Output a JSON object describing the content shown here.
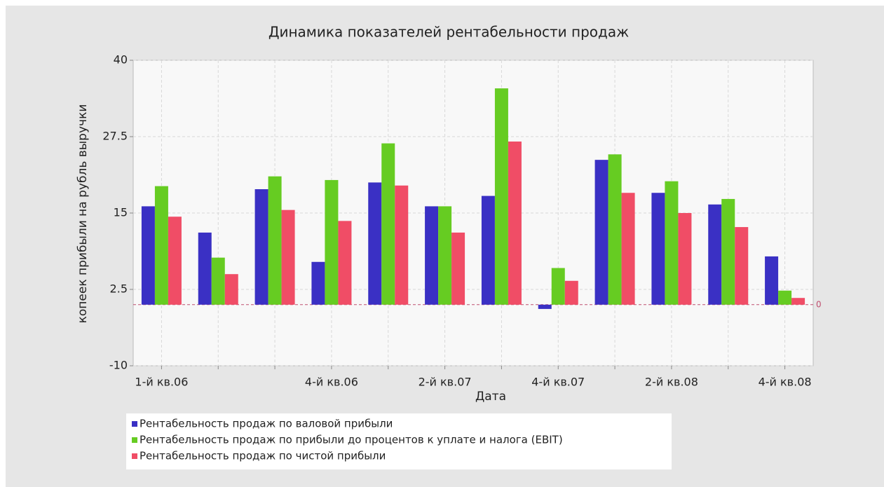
{
  "chart_data": {
    "type": "bar",
    "title": "Динамика показателей рентабельности продаж",
    "x_label": "Дата",
    "y_label": "копеек прибыли на рубль выручки",
    "categories": [
      "1-й кв.06",
      null,
      null,
      "4-й кв.06",
      null,
      "2-й кв.07",
      null,
      "4-й кв.07",
      null,
      "2-й кв.08",
      null,
      "4-й кв.08"
    ],
    "series": [
      {
        "name": "Рентабельность продаж по валовой прибыли",
        "color": "#3a30c4",
        "values": [
          16.1,
          11.8,
          18.9,
          7.0,
          20.0,
          16.1,
          17.8,
          -0.7,
          23.7,
          18.3,
          16.4,
          7.9
        ]
      },
      {
        "name": "Рентабельность продаж по прибыли до процентов к уплате и налога (EBIT)",
        "color": "#66cc22",
        "values": [
          19.4,
          7.7,
          21.0,
          20.4,
          26.4,
          16.1,
          35.4,
          6.0,
          24.6,
          20.2,
          17.3,
          2.3
        ]
      },
      {
        "name": "Рентабельность продаж по чистой прибыли",
        "color": "#f04d66",
        "values": [
          14.4,
          5.0,
          15.5,
          13.7,
          19.5,
          11.8,
          26.7,
          3.9,
          18.3,
          15.0,
          12.7,
          1.1
        ]
      }
    ],
    "ylim": [
      -10,
      40
    ],
    "yticks": [
      -10,
      2.5,
      15,
      27.5,
      40
    ],
    "grid": true,
    "markers": [
      0
    ]
  }
}
